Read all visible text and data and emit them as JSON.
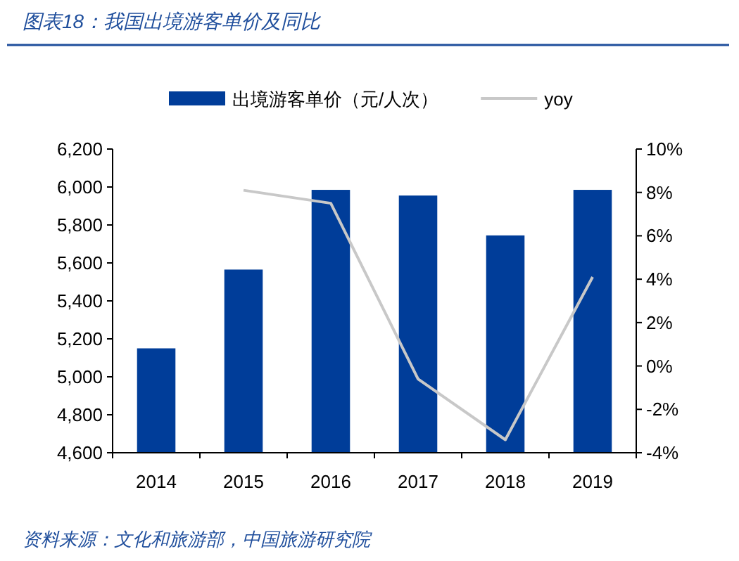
{
  "chart_data": {
    "type": "bar",
    "title": "图表18：我国出境游客单价及同比",
    "categories": [
      "2014",
      "2015",
      "2016",
      "2017",
      "2018",
      "2019"
    ],
    "series": [
      {
        "name": "出境游客单价（元/人次）",
        "color": "#003d99",
        "values": [
          5150,
          5565,
          5985,
          5955,
          5745,
          5985
        ]
      },
      {
        "name": "yoy",
        "type": "line",
        "axis": "y2",
        "color": "#c8c8c8",
        "values": [
          null,
          8.1,
          7.5,
          -0.6,
          -3.4,
          4.1
        ]
      }
    ],
    "ylim": [
      4600,
      6200
    ],
    "yticks": [
      {
        "value": 4600,
        "label": "4,600"
      },
      {
        "value": 4800,
        "label": "4,800"
      },
      {
        "value": 5000,
        "label": "5,000"
      },
      {
        "value": 5200,
        "label": "5,200"
      },
      {
        "value": 5400,
        "label": "5,400"
      },
      {
        "value": 5600,
        "label": "5,600"
      },
      {
        "value": 5800,
        "label": "5,800"
      },
      {
        "value": 6000,
        "label": "6,000"
      },
      {
        "value": 6200,
        "label": "6,200"
      }
    ],
    "y2lim": [
      -4,
      10
    ],
    "y2ticks": [
      {
        "value": -4,
        "label": "-4%"
      },
      {
        "value": -2,
        "label": "-2%"
      },
      {
        "value": 0,
        "label": "0%"
      },
      {
        "value": 2,
        "label": "2%"
      },
      {
        "value": 4,
        "label": "4%"
      },
      {
        "value": 6,
        "label": "6%"
      },
      {
        "value": 8,
        "label": "8%"
      },
      {
        "value": 10,
        "label": "10%"
      }
    ],
    "grid": false,
    "legend": "top",
    "annotations": [
      "资料来源：文化和旅游部，中国旅游研究院"
    ]
  }
}
